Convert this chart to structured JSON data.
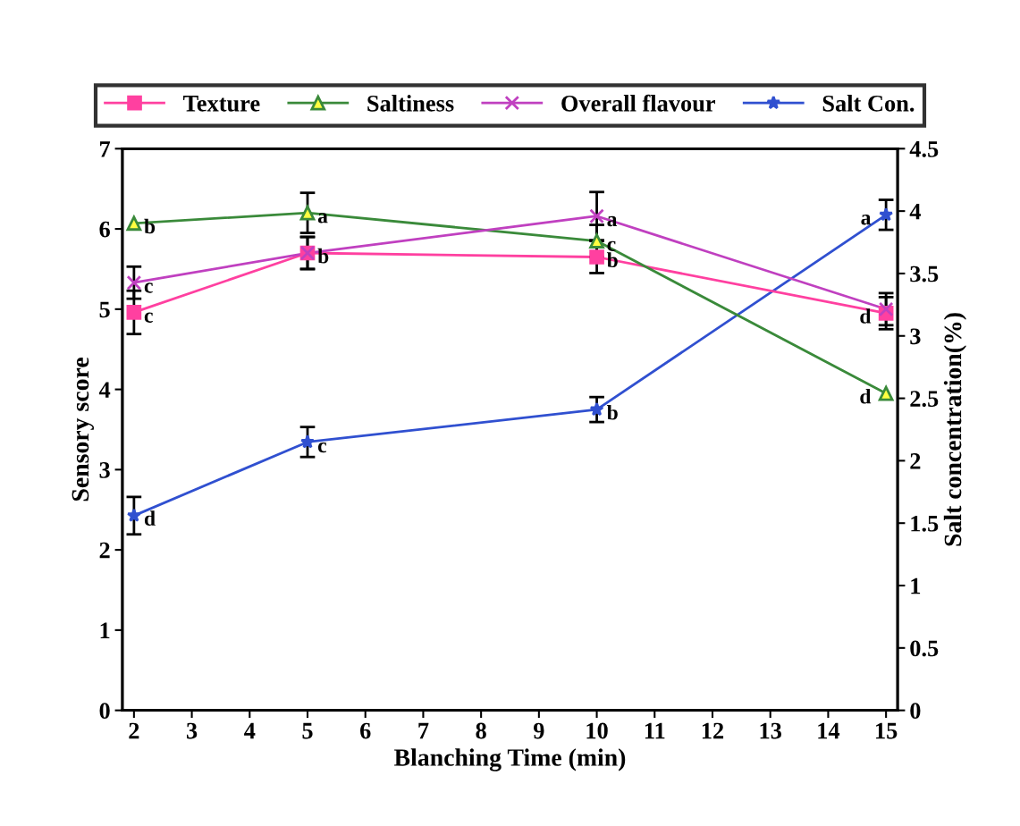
{
  "chart_data": {
    "type": "line",
    "xlabel": "Blanching Time (min)",
    "ylabel": "Sensory score",
    "y2label": "Salt concentration(%)",
    "x": [
      2,
      5,
      10,
      15
    ],
    "series": [
      {
        "name": "Texture",
        "color": "#ff40a0",
        "marker": "square",
        "values": [
          4.96,
          5.7,
          5.65,
          4.95
        ],
        "errors": [
          0.27,
          0.2,
          0.2,
          0.2
        ]
      },
      {
        "name": "Saltiness",
        "color": "#3a8a3a",
        "marker": "triangle",
        "values": [
          6.07,
          6.2,
          5.85,
          3.95
        ],
        "errors": [
          null,
          0.25,
          0.2,
          null
        ]
      },
      {
        "name": "Overall flavour",
        "color": "#c040c0",
        "marker": "cross",
        "values": [
          5.33,
          5.7,
          6.16,
          5.0
        ],
        "errors": [
          0.2,
          0.2,
          0.3,
          0.2
        ]
      },
      {
        "name": "Salt Con.",
        "color": "#3050d0",
        "marker": "star",
        "axis": "y2",
        "values": [
          1.56,
          2.15,
          2.41,
          3.97
        ],
        "errors": [
          0.15,
          0.12,
          0.1,
          0.12
        ]
      }
    ],
    "xlim": [
      1.8,
      15.2
    ],
    "xticks": [
      2,
      3,
      4,
      5,
      6,
      7,
      8,
      9,
      10,
      11,
      12,
      13,
      14,
      15
    ],
    "ylim": [
      0,
      7
    ],
    "yticks": [
      0,
      1,
      2,
      3,
      4,
      5,
      6,
      7
    ],
    "y2lim": [
      0,
      4.5
    ],
    "y2ticks": [
      0,
      0.5,
      1,
      1.5,
      2,
      2.5,
      3,
      3.5,
      4,
      4.5
    ],
    "legend": "top",
    "grid": false,
    "line_style": "solid",
    "annotations": [
      {
        "text": "c",
        "x": 2,
        "y": 4.96
      },
      {
        "text": "b",
        "x": 5,
        "y": 5.7
      },
      {
        "text": "b",
        "x": 10,
        "y": 5.65
      },
      {
        "text": "d",
        "x": 15,
        "y": 4.95
      },
      {
        "text": "b",
        "x": 2,
        "y": 6.07
      },
      {
        "text": "a",
        "x": 5,
        "y": 6.2
      },
      {
        "text": "c",
        "x": 10,
        "y": 5.85
      },
      {
        "text": "d",
        "x": 15,
        "y": 3.95
      },
      {
        "text": "c",
        "x": 2,
        "y": 5.33
      },
      {
        "text": "a",
        "x": 10,
        "y": 6.16
      },
      {
        "text": "d",
        "x": 2,
        "y": 2.43
      },
      {
        "text": "c",
        "x": 5,
        "y": 3.34
      },
      {
        "text": "b",
        "x": 10,
        "y": 3.75
      },
      {
        "text": "a",
        "x": 15,
        "y": 6.18
      }
    ]
  }
}
